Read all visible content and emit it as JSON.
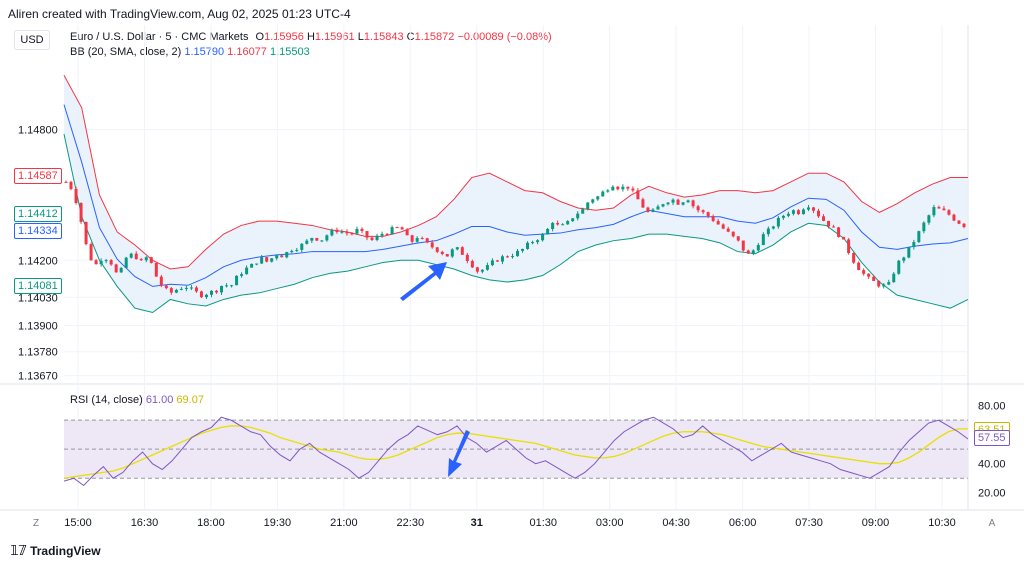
{
  "header": {
    "created_by": "Aliren created with TradingView.com, Aug 02, 2025 01:23 UTC-4",
    "currency_badge": "USD"
  },
  "legend": {
    "symbol": "Euro / U.S. Dollar · 5 · CMC Markets",
    "open_label": "O",
    "open": "1.15956",
    "high_label": "H",
    "high": "1.15961",
    "low_label": "L",
    "low": "1.15843",
    "close_label": "C",
    "close": "1.15872",
    "change": "−0.00089 (−0.08%)",
    "bb_label": "BB (20, SMA, close, 2)",
    "bb_basis": "1.15790",
    "bb_upper": "1.16077",
    "bb_lower": "1.15503",
    "rsi_label": "RSI (14, close)",
    "rsi_value": "61.00",
    "rsi_ma": "69.07"
  },
  "price_labels": [
    {
      "text": "1.14587",
      "color": "#f23645",
      "value": 1.14587
    },
    {
      "text": "1.14412",
      "color": "#089981",
      "value": 1.14412
    },
    {
      "text": "1.14334",
      "color": "#2962ff",
      "value": 1.14334
    },
    {
      "text": "1.14081",
      "color": "#089981",
      "value": 1.14081
    }
  ],
  "rsi_labels": [
    {
      "text": "63.51",
      "color": "#c9b800",
      "value": 63.51
    },
    {
      "text": "57.55",
      "color": "#7e57c2",
      "value": 57.55
    }
  ],
  "footer": {
    "brand": "TradingView",
    "left_btn": "Z",
    "right_btn": "A"
  },
  "colors": {
    "up": "#089981",
    "down": "#f23645",
    "bb_basis": "#2962ff",
    "bb_upper": "#f23645",
    "bb_lower": "#089981",
    "bb_fill": "#e6f0fb",
    "rsi": "#7e57c2",
    "rsi_ma": "#e8e000",
    "rsi_band": "#ede7f6",
    "arrow": "#2962ff"
  },
  "chart_data": [
    {
      "type": "candlestick",
      "title": "Euro / U.S. Dollar · 5 · CMC Markets",
      "x_ticks": [
        "15:00",
        "16:30",
        "18:00",
        "19:30",
        "21:00",
        "22:30",
        "31",
        "01:30",
        "03:00",
        "04:30",
        "06:00",
        "07:30",
        "09:00",
        "10:30"
      ],
      "y_ticks": [
        "1.14800",
        "1.14200",
        "1.14030",
        "1.13900",
        "1.13780",
        "1.13670"
      ],
      "y_tick_values": [
        1.148,
        1.142,
        1.1403,
        1.139,
        1.1378,
        1.1367
      ],
      "ylim": [
        1.1365,
        1.1512
      ],
      "close_path": [
        1.1456,
        1.1452,
        1.1438,
        1.1422,
        1.1418,
        1.1422,
        1.1419,
        1.1412,
        1.1421,
        1.1423,
        1.1419,
        1.1422,
        1.1413,
        1.1407,
        1.1405,
        1.1407,
        1.1408,
        1.1406,
        1.1404,
        1.1405,
        1.1406,
        1.1409,
        1.1408,
        1.1413,
        1.1416,
        1.1418,
        1.1421,
        1.1419,
        1.1423,
        1.1422,
        1.1425,
        1.1426,
        1.1428,
        1.1431,
        1.1429,
        1.1432,
        1.1434,
        1.1433,
        1.1432,
        1.1434,
        1.1431,
        1.1429,
        1.1432,
        1.1433,
        1.1435,
        1.1434,
        1.1428,
        1.1431,
        1.1428,
        1.1426,
        1.1424,
        1.1422,
        1.1426,
        1.1423,
        1.1419,
        1.1415,
        1.1416,
        1.1419,
        1.1421,
        1.1422,
        1.1423,
        1.1425,
        1.1428,
        1.143,
        1.1432,
        1.1438,
        1.1435,
        1.1437,
        1.1441,
        1.1443,
        1.1448,
        1.1449,
        1.1452,
        1.1455,
        1.1453,
        1.1454,
        1.145,
        1.1445,
        1.1441,
        1.1444,
        1.1447,
        1.1448,
        1.1446,
        1.1449,
        1.1444,
        1.1442,
        1.144,
        1.1437,
        1.1434,
        1.1431,
        1.1428,
        1.1422,
        1.1425,
        1.1431,
        1.1434,
        1.1438,
        1.1441,
        1.1443,
        1.1442,
        1.1446,
        1.1443,
        1.1439,
        1.1436,
        1.1433,
        1.1428,
        1.1421,
        1.1416,
        1.1412,
        1.141,
        1.1408,
        1.1409,
        1.1418,
        1.1422,
        1.1427,
        1.1433,
        1.1439,
        1.1444,
        1.1443,
        1.1441,
        1.1438,
        1.1436
      ],
      "bb_upper_path": [
        1.1505,
        1.149,
        1.145,
        1.1433,
        1.1427,
        1.142,
        1.1416,
        1.1417,
        1.1425,
        1.1432,
        1.1436,
        1.1438,
        1.1438,
        1.1437,
        1.1436,
        1.1434,
        1.1433,
        1.1431,
        1.1431,
        1.1433,
        1.1436,
        1.144,
        1.1448,
        1.1458,
        1.146,
        1.1456,
        1.1452,
        1.1451,
        1.1447,
        1.1444,
        1.1443,
        1.1444,
        1.145,
        1.1454,
        1.1451,
        1.1449,
        1.145,
        1.1452,
        1.1452,
        1.1451,
        1.1452,
        1.1456,
        1.146,
        1.146,
        1.1456,
        1.1447,
        1.1442,
        1.1446,
        1.1451,
        1.1455,
        1.1458,
        1.1458
      ],
      "bb_lower_path": [
        1.1478,
        1.144,
        1.142,
        1.1408,
        1.1398,
        1.1396,
        1.1402,
        1.14,
        1.1399,
        1.1402,
        1.1404,
        1.1405,
        1.1407,
        1.1409,
        1.1412,
        1.1414,
        1.1415,
        1.1417,
        1.1419,
        1.142,
        1.142,
        1.1418,
        1.1416,
        1.1413,
        1.1411,
        1.141,
        1.1411,
        1.1413,
        1.1418,
        1.1424,
        1.1427,
        1.1429,
        1.143,
        1.1432,
        1.1432,
        1.1431,
        1.143,
        1.1428,
        1.1424,
        1.1423,
        1.1427,
        1.1433,
        1.1437,
        1.1436,
        1.143,
        1.1419,
        1.141,
        1.1404,
        1.1402,
        1.14,
        1.1398,
        1.1402
      ],
      "annotation": "blue arrow pointing up-right to the local low near 23:45"
    },
    {
      "type": "line",
      "title": "RSI (14, close)",
      "y_ticks": [
        "80.00",
        "40.00",
        "20.00"
      ],
      "y_tick_values": [
        80,
        40,
        20
      ],
      "ylim": [
        15,
        88
      ],
      "bands": [
        70,
        50,
        30
      ],
      "series": [
        {
          "name": "RSI",
          "values": [
            28,
            30,
            25,
            32,
            38,
            30,
            34,
            42,
            48,
            40,
            36,
            42,
            50,
            58,
            62,
            65,
            72,
            70,
            66,
            62,
            60,
            52,
            46,
            42,
            50,
            54,
            48,
            44,
            40,
            36,
            30,
            34,
            42,
            50,
            56,
            60,
            66,
            63,
            60,
            62,
            66,
            58,
            54,
            48,
            52,
            56,
            50,
            44,
            40,
            42,
            38,
            34,
            30,
            34,
            40,
            48,
            56,
            62,
            66,
            70,
            72,
            68,
            64,
            58,
            60,
            66,
            60,
            56,
            52,
            48,
            42,
            46,
            50,
            54,
            48,
            46,
            44,
            42,
            40,
            36,
            34,
            32,
            30,
            34,
            38,
            48,
            56,
            62,
            68,
            70,
            66,
            62,
            57
          ]
        },
        {
          "name": "RSI MA",
          "values": [
            30,
            31,
            32,
            33,
            34,
            35,
            37,
            40,
            43,
            46,
            49,
            52,
            55,
            58,
            61,
            63,
            65,
            66,
            66,
            65,
            63,
            61,
            58,
            56,
            54,
            52,
            50,
            49,
            48,
            46,
            44,
            43,
            43,
            44,
            46,
            49,
            52,
            55,
            58,
            60,
            61,
            61,
            60,
            59,
            58,
            57,
            56,
            55,
            54,
            52,
            50,
            48,
            46,
            45,
            44,
            44,
            45,
            47,
            50,
            53,
            56,
            59,
            61,
            62,
            62,
            62,
            61,
            60,
            58,
            56,
            54,
            52,
            51,
            50,
            49,
            48,
            47,
            46,
            45,
            44,
            43,
            42,
            41,
            40,
            40,
            41,
            44,
            48,
            53,
            58,
            62,
            64,
            64
          ]
        }
      ],
      "annotation": "blue arrow pointing down-left to RSI low near 23:45"
    }
  ]
}
